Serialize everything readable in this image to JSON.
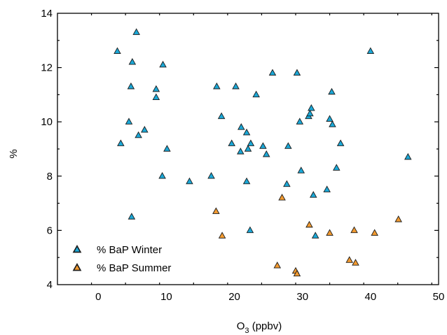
{
  "chart_data": {
    "type": "scatter",
    "xlabel": "O",
    "xlabel_sub": "3",
    "xlabel_unit": " (ppbv)",
    "ylabel": "%",
    "xlim": [
      -6,
      50
    ],
    "ylim": [
      4,
      14
    ],
    "xticks": [
      0,
      10,
      20,
      30,
      40,
      50
    ],
    "yticks": [
      4,
      6,
      8,
      10,
      12,
      14
    ],
    "legend_position": "bottom-left",
    "grid": false,
    "series": [
      {
        "name": "% BaP Winter",
        "color": "#1ba7d6",
        "marker": "triangle",
        "points": [
          [
            2.8,
            12.6
          ],
          [
            5.6,
            13.3
          ],
          [
            5.0,
            12.2
          ],
          [
            4.8,
            11.3
          ],
          [
            3.3,
            9.2
          ],
          [
            4.5,
            10.0
          ],
          [
            5.9,
            9.5
          ],
          [
            6.8,
            9.7
          ],
          [
            8.5,
            11.2
          ],
          [
            8.5,
            10.9
          ],
          [
            9.5,
            12.1
          ],
          [
            10.1,
            9.0
          ],
          [
            9.4,
            8.0
          ],
          [
            4.9,
            6.5
          ],
          [
            13.4,
            7.8
          ],
          [
            16.6,
            8.0
          ],
          [
            17.4,
            11.3
          ],
          [
            18.1,
            10.2
          ],
          [
            19.6,
            9.2
          ],
          [
            20.2,
            11.3
          ],
          [
            20.9,
            8.9
          ],
          [
            21.0,
            9.8
          ],
          [
            21.8,
            9.6
          ],
          [
            22.0,
            9.0
          ],
          [
            22.4,
            9.2
          ],
          [
            21.8,
            7.8
          ],
          [
            22.3,
            6.0
          ],
          [
            23.2,
            11.0
          ],
          [
            24.2,
            9.1
          ],
          [
            24.7,
            8.8
          ],
          [
            25.6,
            11.8
          ],
          [
            27.9,
            9.1
          ],
          [
            27.7,
            7.7
          ],
          [
            29.2,
            11.8
          ],
          [
            29.6,
            10.0
          ],
          [
            29.8,
            8.2
          ],
          [
            30.9,
            10.2
          ],
          [
            31.1,
            10.3
          ],
          [
            31.3,
            10.5
          ],
          [
            31.6,
            7.3
          ],
          [
            31.9,
            5.8
          ],
          [
            33.6,
            7.5
          ],
          [
            34.0,
            10.1
          ],
          [
            34.3,
            11.1
          ],
          [
            34.4,
            9.9
          ],
          [
            35.0,
            8.3
          ],
          [
            35.6,
            9.2
          ],
          [
            40.0,
            12.6
          ],
          [
            45.5,
            8.7
          ]
        ]
      },
      {
        "name": "% BaP Summer",
        "color": "#f29a30",
        "marker": "triangle",
        "points": [
          [
            17.3,
            6.7
          ],
          [
            18.2,
            5.8
          ],
          [
            26.3,
            4.7
          ],
          [
            27.0,
            7.2
          ],
          [
            29.0,
            4.5
          ],
          [
            29.2,
            4.4
          ],
          [
            31.0,
            6.2
          ],
          [
            34.0,
            5.9
          ],
          [
            36.9,
            4.9
          ],
          [
            37.6,
            6.0
          ],
          [
            37.8,
            4.8
          ],
          [
            40.6,
            5.9
          ],
          [
            44.1,
            6.4
          ]
        ]
      }
    ]
  }
}
